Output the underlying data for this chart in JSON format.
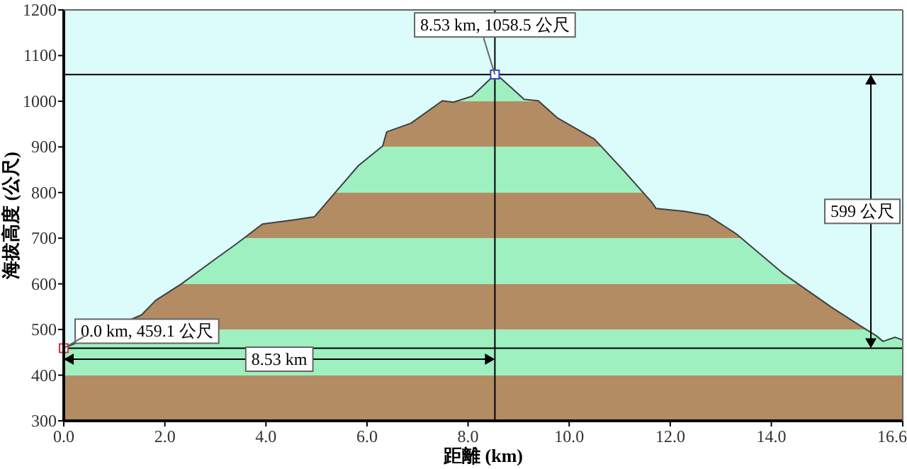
{
  "chart_data": {
    "type": "area",
    "ylabel": "海拔高度 (公尺)",
    "xlabel": "距離 (km)",
    "xlim": [
      0,
      16.6
    ],
    "ylim": [
      300,
      1200
    ],
    "xticks": [
      {
        "value": 0,
        "label": "0.0"
      },
      {
        "value": 2,
        "label": "2.0"
      },
      {
        "value": 4,
        "label": "4.0"
      },
      {
        "value": 6,
        "label": "6.0"
      },
      {
        "value": 8,
        "label": "8.0"
      },
      {
        "value": 10,
        "label": "10.0"
      },
      {
        "value": 12,
        "label": "12.0"
      },
      {
        "value": 14,
        "label": "14.0"
      },
      {
        "value": 16.6,
        "label": "16.6"
      }
    ],
    "yticks": [
      300,
      400,
      500,
      600,
      700,
      800,
      900,
      1000,
      1100,
      1200
    ],
    "grid": false,
    "colors": [
      "#b38c64",
      "#9ef0c0"
    ],
    "series": [
      {
        "color": "#404040",
        "x": [
          0,
          1.54,
          1.82,
          2.33,
          3.03,
          3.42,
          3.93,
          4.54,
          4.96,
          5.27,
          5.83,
          6.31,
          6.39,
          6.87,
          7.49,
          7.71,
          8.08,
          8.53,
          8.64,
          9.11,
          9.39,
          9.76,
          10.5,
          11.07,
          11.64,
          11.72,
          12.28,
          12.74,
          13.3,
          14.23,
          15.2,
          15.76,
          16.08,
          16.21,
          16.45,
          16.6
        ],
        "values": [
          459.1,
          532,
          564,
          600,
          657,
          688,
          731,
          740,
          747,
          787,
          859,
          902,
          933,
          952,
          1001,
          998,
          1011,
          1058.5,
          1051,
          1004,
          1001,
          964,
          917,
          849,
          778,
          765,
          759,
          750,
          710,
          623,
          548,
          508,
          486,
          474,
          483,
          477
        ]
      },
      {
        "type": "scatter",
        "marker": "square",
        "x": [
          0,
          8.53
        ],
        "values": [
          459.1,
          1058.5
        ],
        "colors": [
          "#e03030",
          "#3040d0"
        ]
      }
    ],
    "ref_lines": [
      {
        "axis": "y",
        "value": 1058.5,
        "color": "#000000"
      },
      {
        "axis": "y",
        "value": 459.1,
        "color": "#000000"
      },
      {
        "axis": "x",
        "value": 8.53,
        "color": "#000000"
      }
    ],
    "annotations": [
      {
        "text": "8.53 km, 1058.5 公尺",
        "x": 8.53,
        "y": 1058.5
      },
      {
        "text": "0.0 km, 459.1 公尺",
        "x": 0,
        "y": 459.1
      },
      "8.53 km",
      "599 公尺"
    ]
  }
}
